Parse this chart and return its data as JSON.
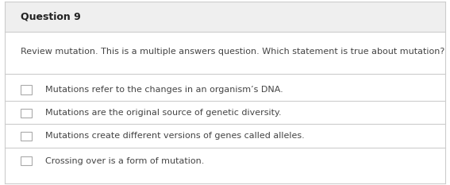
{
  "title": "Question 9",
  "prompt": "Review mutation. This is a multiple answers question. Which statement is true about mutation?",
  "options": [
    "Mutations refer to the changes in an organism’s DNA.",
    "Mutations are the original source of genetic diversity.",
    "Mutations create different versions of genes called alleles.",
    "Crossing over is a form of mutation."
  ],
  "bg_color": "#ffffff",
  "header_bg": "#efefef",
  "border_color": "#cccccc",
  "title_fontsize": 9,
  "prompt_fontsize": 8,
  "option_fontsize": 8,
  "title_color": "#222222",
  "text_color": "#444444",
  "checkbox_color": "#aaaaaa"
}
